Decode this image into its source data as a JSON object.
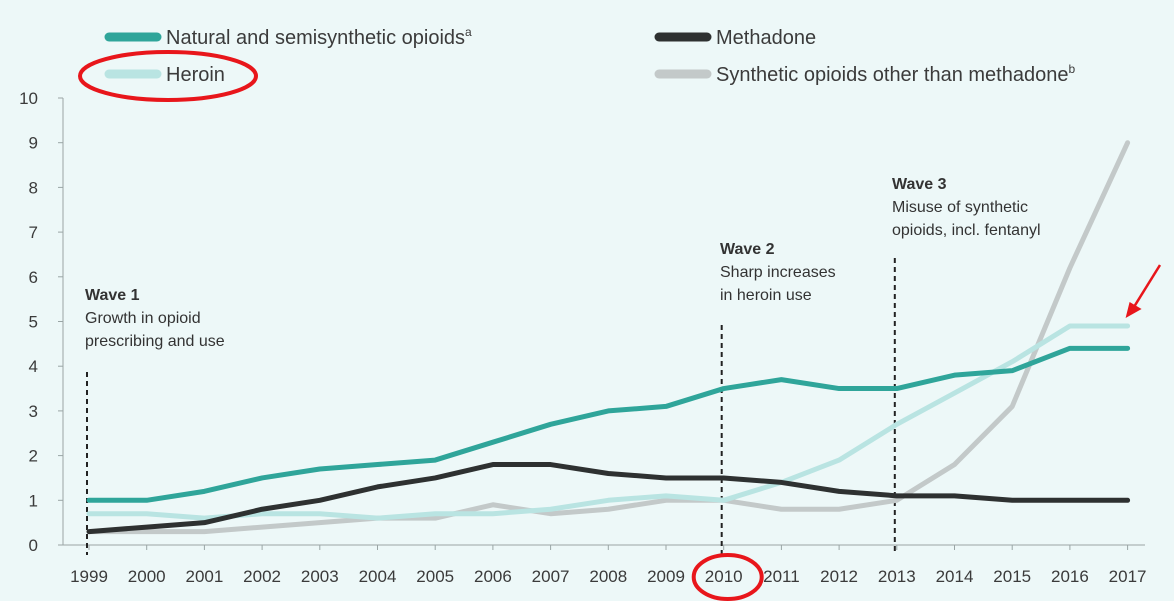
{
  "chart_data": {
    "type": "line",
    "x": [
      "1999",
      "2000",
      "2001",
      "2002",
      "2003",
      "2004",
      "2005",
      "2006",
      "2007",
      "2008",
      "2009",
      "2010",
      "2011",
      "2012",
      "2013",
      "2014",
      "2015",
      "2016",
      "2017"
    ],
    "ylim": [
      0,
      10
    ],
    "yticks": [
      "0",
      "1",
      "2",
      "3",
      "4",
      "5",
      "6",
      "7",
      "8",
      "9",
      "10"
    ],
    "grid": false,
    "legend_position": "top",
    "series": [
      {
        "name": "Natural and semisynthetic opioids",
        "superscript": "a",
        "color": "#2fa59a",
        "values": [
          1.0,
          1.0,
          1.2,
          1.5,
          1.7,
          1.8,
          1.9,
          2.3,
          2.7,
          3.0,
          3.1,
          3.5,
          3.7,
          3.5,
          3.5,
          3.8,
          3.9,
          4.4,
          4.4
        ]
      },
      {
        "name": "Heroin",
        "color": "#b9e4e2",
        "values": [
          0.7,
          0.7,
          0.6,
          0.7,
          0.7,
          0.6,
          0.7,
          0.7,
          0.8,
          1.0,
          1.1,
          1.0,
          1.4,
          1.9,
          2.7,
          3.4,
          4.1,
          4.9,
          4.9
        ]
      },
      {
        "name": "Methadone",
        "color": "#2e3131",
        "values": [
          0.3,
          0.4,
          0.5,
          0.8,
          1.0,
          1.3,
          1.5,
          1.8,
          1.8,
          1.6,
          1.5,
          1.5,
          1.4,
          1.2,
          1.1,
          1.1,
          1.0,
          1.0,
          1.0
        ]
      },
      {
        "name": "Synthetic opioids other than methadone",
        "superscript": "b",
        "color": "#c3c9c9",
        "values": [
          0.3,
          0.3,
          0.3,
          0.4,
          0.5,
          0.6,
          0.6,
          0.9,
          0.7,
          0.8,
          1.0,
          1.0,
          0.8,
          0.8,
          1.0,
          1.8,
          3.1,
          6.2,
          9.0
        ]
      }
    ],
    "annotations": [
      {
        "x": "1999",
        "title": "Wave 1",
        "lines": [
          "Growth in opioid",
          "prescribing and use"
        ]
      },
      {
        "x": "2010",
        "title": "Wave 2",
        "lines": [
          "Sharp increases",
          "in heroin use"
        ]
      },
      {
        "x": "2013",
        "title": "Wave 3",
        "lines": [
          "Misuse of synthetic",
          "opioids, incl. fentanyl"
        ]
      }
    ],
    "highlights": {
      "color": "#e8161b",
      "circled_legend": "Heroin",
      "circled_tick": "2010",
      "arrow_target_series": "Heroin",
      "arrow_target_x": "2017"
    }
  }
}
